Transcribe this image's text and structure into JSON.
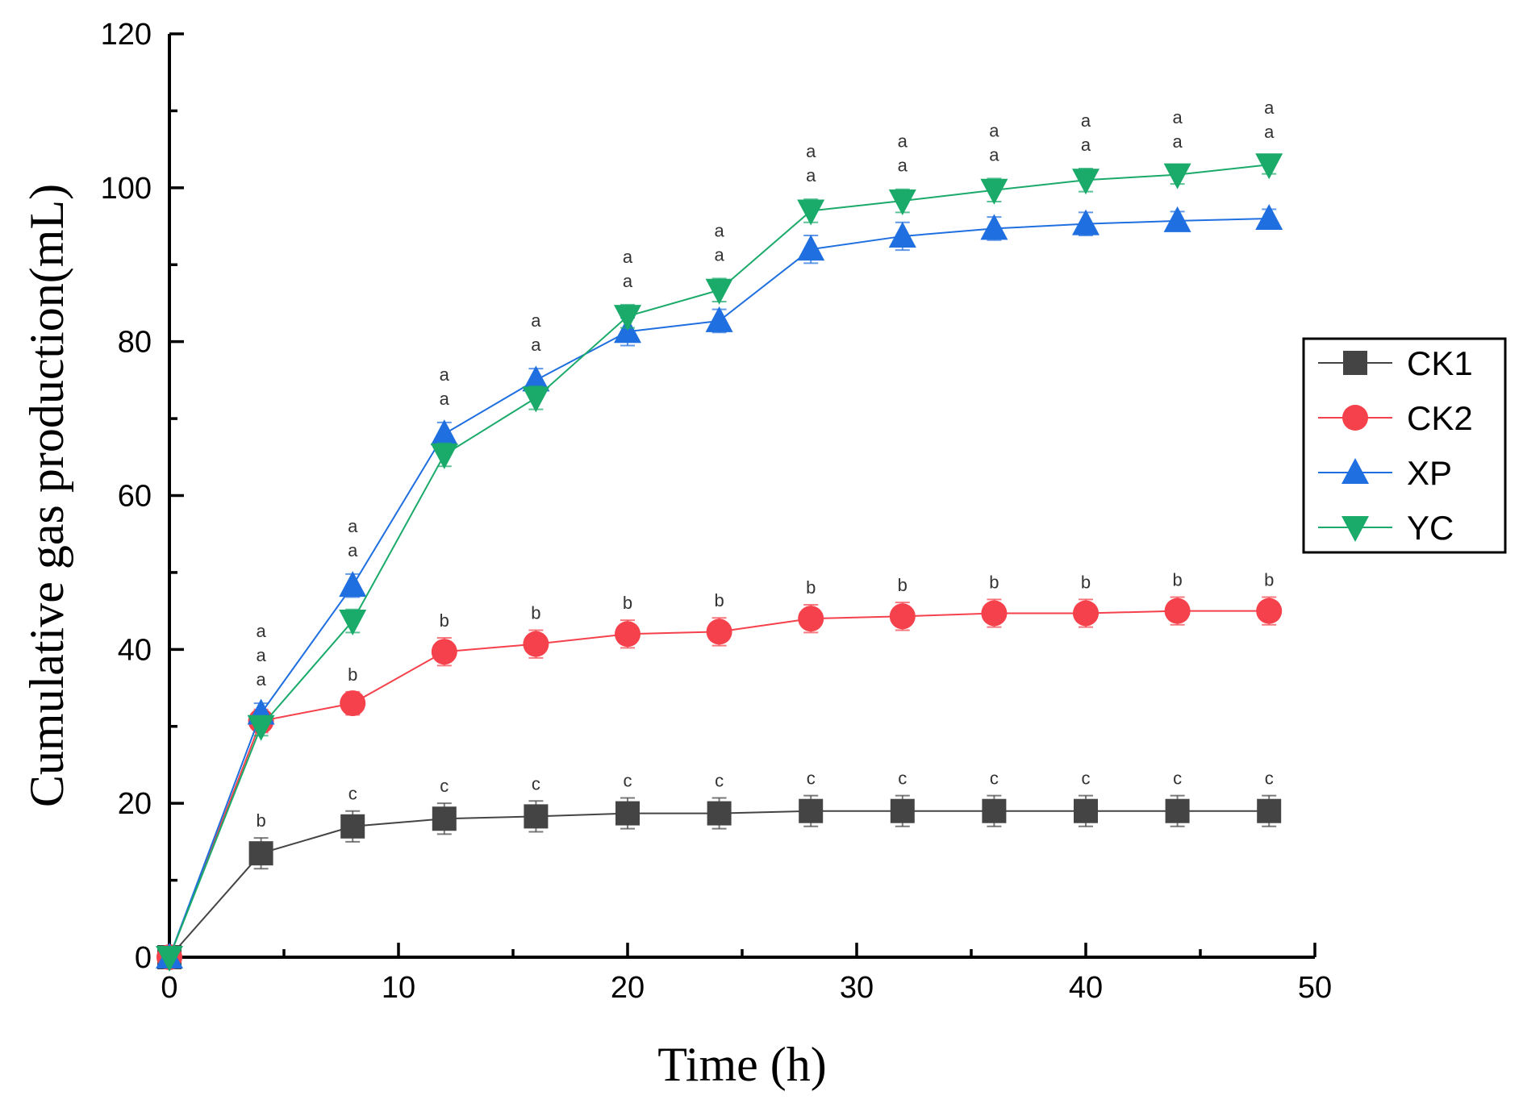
{
  "chart_data": {
    "type": "line",
    "xlabel": "Time (h)",
    "ylabel": "Cumulative gas production(mL)",
    "xlim": [
      0,
      50
    ],
    "ylim": [
      0,
      120
    ],
    "xticks": [
      0,
      10,
      20,
      30,
      40,
      50
    ],
    "yticks": [
      0,
      20,
      40,
      60,
      80,
      100,
      120
    ],
    "x": [
      0,
      4,
      8,
      12,
      16,
      20,
      24,
      28,
      32,
      36,
      40,
      44,
      48
    ],
    "legend_position": "right",
    "series": [
      {
        "name": "CK1",
        "color": "#444444",
        "marker": "square",
        "values": [
          0,
          13.5,
          17,
          18,
          18.3,
          18.7,
          18.7,
          19,
          19,
          19,
          19,
          19,
          19
        ],
        "errors": [
          0,
          2,
          2,
          2,
          2,
          2,
          2,
          2,
          2,
          2,
          2,
          2,
          2
        ],
        "letters": [
          "",
          "b",
          "c",
          "c",
          "c",
          "c",
          "c",
          "c",
          "c",
          "c",
          "c",
          "c",
          "c"
        ]
      },
      {
        "name": "CK2",
        "color": "#f5414b",
        "marker": "circle",
        "values": [
          0,
          30.7,
          33,
          39.7,
          40.7,
          42,
          42.3,
          44,
          44.3,
          44.7,
          44.7,
          45,
          45
        ],
        "errors": [
          0,
          1.5,
          1.5,
          1.8,
          1.8,
          1.8,
          1.8,
          1.8,
          1.8,
          1.8,
          1.8,
          1.8,
          1.8
        ],
        "letters": [
          "",
          "a",
          "b",
          "b",
          "b",
          "b",
          "b",
          "b",
          "b",
          "b",
          "b",
          "b",
          "b"
        ]
      },
      {
        "name": "XP",
        "color": "#1f6fe0",
        "marker": "triangle-up",
        "values": [
          0,
          31.7,
          48.3,
          68,
          75,
          81.3,
          82.7,
          92,
          93.7,
          94.7,
          95.3,
          95.7,
          96
        ],
        "errors": [
          0,
          1.3,
          1.5,
          1.5,
          1.5,
          1.8,
          1.5,
          1.8,
          1.8,
          1.5,
          1.5,
          1.2,
          1.2
        ],
        "letters": [
          "",
          "a",
          "a",
          "a",
          "a",
          "a",
          "a",
          "a",
          "a",
          "a",
          "a",
          "a",
          "a"
        ]
      },
      {
        "name": "YC",
        "color": "#1aaa6a",
        "marker": "triangle-down",
        "values": [
          0,
          30,
          43.7,
          65.3,
          72.7,
          83.3,
          86.7,
          97,
          98.3,
          99.7,
          101,
          101.7,
          103
        ],
        "errors": [
          0,
          1.2,
          1.5,
          1.5,
          1.5,
          1.5,
          1.5,
          1.5,
          1.5,
          1.5,
          1.5,
          1.2,
          1.2
        ],
        "letters": [
          "",
          "a",
          "a",
          "a",
          "a",
          "a",
          "a",
          "a",
          "a",
          "a",
          "a",
          "a",
          "a"
        ]
      }
    ]
  }
}
